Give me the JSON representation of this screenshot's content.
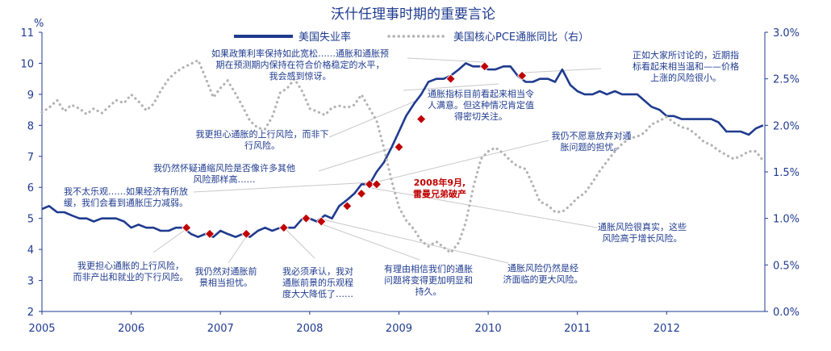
{
  "chart_data": {
    "type": "line",
    "title": "沃什任理事时期的重要言论",
    "y_left_unit": "%",
    "y_left_range": [
      2,
      11
    ],
    "y_left_ticks": [
      "2",
      "3",
      "4",
      "5",
      "6",
      "7",
      "8",
      "9",
      "10",
      "11"
    ],
    "y_right_range": [
      0.0,
      3.0
    ],
    "y_right_ticks": [
      "0.0%",
      "0.5%",
      "1.0%",
      "1.5%",
      "2.0%",
      "2.5%",
      "3.0%"
    ],
    "x_range": [
      2005,
      2013.1
    ],
    "x_ticks": [
      "2005",
      "2006",
      "2007",
      "2008",
      "2009",
      "2010",
      "2011",
      "2012"
    ],
    "legend_position": "top-center",
    "series": [
      {
        "name": "美国失业率",
        "axis": "left",
        "style": "solid",
        "color": "#1f3b8f",
        "points": [
          [
            2005.0,
            5.3
          ],
          [
            2005.08,
            5.4
          ],
          [
            2005.17,
            5.2
          ],
          [
            2005.25,
            5.2
          ],
          [
            2005.33,
            5.1
          ],
          [
            2005.42,
            5.0
          ],
          [
            2005.5,
            5.0
          ],
          [
            2005.58,
            4.9
          ],
          [
            2005.67,
            5.0
          ],
          [
            2005.75,
            5.0
          ],
          [
            2005.83,
            5.0
          ],
          [
            2005.92,
            4.9
          ],
          [
            2006.0,
            4.7
          ],
          [
            2006.08,
            4.8
          ],
          [
            2006.17,
            4.7
          ],
          [
            2006.25,
            4.7
          ],
          [
            2006.33,
            4.6
          ],
          [
            2006.42,
            4.6
          ],
          [
            2006.5,
            4.7
          ],
          [
            2006.58,
            4.7
          ],
          [
            2006.67,
            4.5
          ],
          [
            2006.75,
            4.4
          ],
          [
            2006.83,
            4.5
          ],
          [
            2006.92,
            4.4
          ],
          [
            2007.0,
            4.6
          ],
          [
            2007.08,
            4.5
          ],
          [
            2007.17,
            4.4
          ],
          [
            2007.25,
            4.5
          ],
          [
            2007.33,
            4.4
          ],
          [
            2007.42,
            4.6
          ],
          [
            2007.5,
            4.7
          ],
          [
            2007.58,
            4.6
          ],
          [
            2007.67,
            4.7
          ],
          [
            2007.75,
            4.7
          ],
          [
            2007.83,
            4.7
          ],
          [
            2007.92,
            5.0
          ],
          [
            2008.0,
            5.0
          ],
          [
            2008.08,
            4.9
          ],
          [
            2008.17,
            5.1
          ],
          [
            2008.25,
            5.0
          ],
          [
            2008.33,
            5.4
          ],
          [
            2008.42,
            5.6
          ],
          [
            2008.5,
            5.8
          ],
          [
            2008.58,
            6.1
          ],
          [
            2008.67,
            6.1
          ],
          [
            2008.75,
            6.5
          ],
          [
            2008.83,
            6.8
          ],
          [
            2008.92,
            7.3
          ],
          [
            2009.0,
            7.8
          ],
          [
            2009.08,
            8.3
          ],
          [
            2009.17,
            8.7
          ],
          [
            2009.25,
            9.0
          ],
          [
            2009.33,
            9.4
          ],
          [
            2009.42,
            9.5
          ],
          [
            2009.5,
            9.5
          ],
          [
            2009.58,
            9.6
          ],
          [
            2009.67,
            9.8
          ],
          [
            2009.75,
            10.0
          ],
          [
            2009.83,
            9.9
          ],
          [
            2009.92,
            9.9
          ],
          [
            2010.0,
            9.8
          ],
          [
            2010.08,
            9.8
          ],
          [
            2010.17,
            9.9
          ],
          [
            2010.25,
            9.9
          ],
          [
            2010.33,
            9.6
          ],
          [
            2010.42,
            9.4
          ],
          [
            2010.5,
            9.4
          ],
          [
            2010.58,
            9.5
          ],
          [
            2010.67,
            9.5
          ],
          [
            2010.75,
            9.4
          ],
          [
            2010.83,
            9.8
          ],
          [
            2010.92,
            9.3
          ],
          [
            2011.0,
            9.1
          ],
          [
            2011.08,
            9.0
          ],
          [
            2011.17,
            9.0
          ],
          [
            2011.25,
            9.1
          ],
          [
            2011.33,
            9.0
          ],
          [
            2011.42,
            9.1
          ],
          [
            2011.5,
            9.0
          ],
          [
            2011.58,
            9.0
          ],
          [
            2011.67,
            9.0
          ],
          [
            2011.75,
            8.8
          ],
          [
            2011.83,
            8.6
          ],
          [
            2011.92,
            8.5
          ],
          [
            2012.0,
            8.3
          ],
          [
            2012.08,
            8.3
          ],
          [
            2012.17,
            8.2
          ],
          [
            2012.25,
            8.2
          ],
          [
            2012.33,
            8.2
          ],
          [
            2012.42,
            8.2
          ],
          [
            2012.5,
            8.2
          ],
          [
            2012.58,
            8.1
          ],
          [
            2012.67,
            7.8
          ],
          [
            2012.75,
            7.8
          ],
          [
            2012.83,
            7.8
          ],
          [
            2012.92,
            7.7
          ],
          [
            2013.0,
            7.9
          ],
          [
            2013.08,
            8.0
          ]
        ]
      },
      {
        "name": "美国核心PCE通胀同比（右）",
        "axis": "right",
        "style": "dotted",
        "color": "#b3b3b3",
        "points": [
          [
            2005.0,
            2.14
          ],
          [
            2005.08,
            2.19
          ],
          [
            2005.17,
            2.27
          ],
          [
            2005.25,
            2.15
          ],
          [
            2005.33,
            2.22
          ],
          [
            2005.42,
            2.18
          ],
          [
            2005.5,
            2.12
          ],
          [
            2005.58,
            2.18
          ],
          [
            2005.67,
            2.13
          ],
          [
            2005.75,
            2.2
          ],
          [
            2005.83,
            2.27
          ],
          [
            2005.92,
            2.24
          ],
          [
            2006.0,
            2.33
          ],
          [
            2006.08,
            2.26
          ],
          [
            2006.17,
            2.16
          ],
          [
            2006.25,
            2.23
          ],
          [
            2006.33,
            2.37
          ],
          [
            2006.42,
            2.5
          ],
          [
            2006.5,
            2.57
          ],
          [
            2006.58,
            2.62
          ],
          [
            2006.67,
            2.66
          ],
          [
            2006.75,
            2.7
          ],
          [
            2006.83,
            2.52
          ],
          [
            2006.92,
            2.3
          ],
          [
            2007.0,
            2.4
          ],
          [
            2007.08,
            2.48
          ],
          [
            2007.17,
            2.34
          ],
          [
            2007.25,
            2.2
          ],
          [
            2007.33,
            2.05
          ],
          [
            2007.42,
            1.97
          ],
          [
            2007.5,
            1.96
          ],
          [
            2007.58,
            2.09
          ],
          [
            2007.67,
            2.35
          ],
          [
            2007.75,
            2.4
          ],
          [
            2007.83,
            2.5
          ],
          [
            2007.92,
            2.36
          ],
          [
            2008.0,
            2.18
          ],
          [
            2008.08,
            2.15
          ],
          [
            2008.17,
            2.11
          ],
          [
            2008.25,
            2.19
          ],
          [
            2008.33,
            2.21
          ],
          [
            2008.42,
            2.19
          ],
          [
            2008.5,
            2.22
          ],
          [
            2008.58,
            2.33
          ],
          [
            2008.67,
            2.18
          ],
          [
            2008.75,
            2.05
          ],
          [
            2008.83,
            1.76
          ],
          [
            2008.92,
            1.4
          ],
          [
            2009.0,
            1.12
          ],
          [
            2009.08,
            0.98
          ],
          [
            2009.17,
            0.88
          ],
          [
            2009.25,
            0.76
          ],
          [
            2009.33,
            0.7
          ],
          [
            2009.42,
            0.75
          ],
          [
            2009.5,
            0.69
          ],
          [
            2009.58,
            0.63
          ],
          [
            2009.67,
            0.74
          ],
          [
            2009.75,
            0.96
          ],
          [
            2009.83,
            1.32
          ],
          [
            2009.92,
            1.64
          ],
          [
            2010.0,
            1.72
          ],
          [
            2010.08,
            1.76
          ],
          [
            2010.17,
            1.7
          ],
          [
            2010.25,
            1.62
          ],
          [
            2010.33,
            1.56
          ],
          [
            2010.42,
            1.53
          ],
          [
            2010.5,
            1.36
          ],
          [
            2010.58,
            1.18
          ],
          [
            2010.67,
            1.14
          ],
          [
            2010.75,
            1.07
          ],
          [
            2010.83,
            1.07
          ],
          [
            2010.92,
            1.14
          ],
          [
            2011.0,
            1.22
          ],
          [
            2011.08,
            1.27
          ],
          [
            2011.17,
            1.39
          ],
          [
            2011.25,
            1.51
          ],
          [
            2011.33,
            1.61
          ],
          [
            2011.42,
            1.72
          ],
          [
            2011.5,
            1.8
          ],
          [
            2011.58,
            1.86
          ],
          [
            2011.67,
            1.88
          ],
          [
            2011.75,
            1.92
          ],
          [
            2011.83,
            2.01
          ],
          [
            2011.92,
            2.05
          ],
          [
            2012.0,
            2.09
          ],
          [
            2012.08,
            2.03
          ],
          [
            2012.17,
            1.98
          ],
          [
            2012.25,
            1.96
          ],
          [
            2012.33,
            1.9
          ],
          [
            2012.42,
            1.82
          ],
          [
            2012.5,
            1.79
          ],
          [
            2012.58,
            1.73
          ],
          [
            2012.67,
            1.68
          ],
          [
            2012.75,
            1.64
          ],
          [
            2012.83,
            1.67
          ],
          [
            2012.92,
            1.72
          ],
          [
            2013.0,
            1.72
          ],
          [
            2013.08,
            1.62
          ]
        ]
      }
    ],
    "markers": {
      "color": "#c00000",
      "shape": "diamond",
      "points": [
        [
          2006.62,
          4.7
        ],
        [
          2006.88,
          4.5
        ],
        [
          2007.29,
          4.5
        ],
        [
          2007.71,
          4.7
        ],
        [
          2007.96,
          5.0
        ],
        [
          2008.13,
          4.9
        ],
        [
          2008.42,
          5.4
        ],
        [
          2008.58,
          5.8
        ],
        [
          2008.67,
          6.1
        ],
        [
          2008.75,
          6.1
        ],
        [
          2009.0,
          7.3
        ],
        [
          2009.25,
          8.2
        ],
        [
          2009.58,
          9.5
        ],
        [
          2009.96,
          9.9
        ],
        [
          2010.38,
          9.6
        ]
      ]
    },
    "annotations": [
      {
        "id": "a1",
        "lines": [
          "如果政策利率保持如此宽松……通胀和通胀预",
          "期在预测期内保持在符合价格稳定的水平，",
          "我会感到惊讶。"
        ]
      },
      {
        "id": "a2",
        "lines": [
          "通胀指标目前看起来相当令",
          "人满意。但这种情况肯定值",
          "得密切关注。"
        ]
      },
      {
        "id": "a3",
        "lines": [
          "正如大家所讨论的，近期指",
          "标看起来相当温和——价格",
          "上涨的风险很小。"
        ]
      },
      {
        "id": "a4",
        "lines": [
          "我更担心通胀的上行风险，而非下",
          "行风险。"
        ]
      },
      {
        "id": "a5",
        "lines": [
          "我仍然怀疑通缩风险是否像许多其他",
          "风险那样高……"
        ]
      },
      {
        "id": "a6",
        "lines": [
          "我仍不愿意放弃对通",
          "胀问题的担忧。"
        ]
      },
      {
        "id": "a7",
        "lines": [
          "我不太乐观……如果经济有所放",
          "缓，我们会看到通胀压力减弱。"
        ]
      },
      {
        "id": "a8",
        "lines": [
          "2008年9月,",
          "雷曼兄弟破产"
        ],
        "highlight": true
      },
      {
        "id": "a9",
        "lines": [
          "通胀风险很真实，这些",
          "风险高于增长风险。"
        ]
      },
      {
        "id": "a10",
        "lines": [
          "我更担心通胀的上行风险，",
          "而非产出和就业的下行风险。"
        ]
      },
      {
        "id": "a11",
        "lines": [
          "我仍然对通胀前",
          "景相当担忧。"
        ]
      },
      {
        "id": "a12",
        "lines": [
          "我必须承认，我对",
          "通胀前景的乐观程",
          "度大大降低了……"
        ]
      },
      {
        "id": "a13",
        "lines": [
          "有理由相信我们的通胀",
          "问题将变得更加明显和",
          "持久。"
        ]
      },
      {
        "id": "a14",
        "lines": [
          "通胀风险仍然是经",
          "济面临的更大风险。"
        ]
      }
    ]
  }
}
